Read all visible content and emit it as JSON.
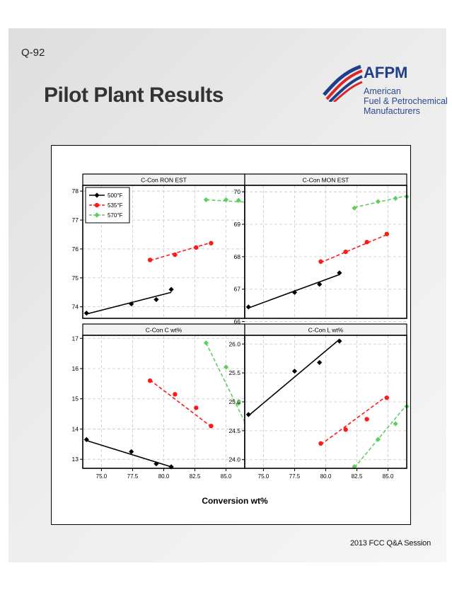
{
  "slide": {
    "number": "Q-92",
    "title": "Pilot Plant Results",
    "footer": "2013 FCC Q&A Session"
  },
  "logo": {
    "name": "AFPM",
    "line1": "American",
    "line2": "Fuel & Petrochemical",
    "line3": "Manufacturers",
    "colors": {
      "blue": "#1f3f8a",
      "red": "#d62828"
    }
  },
  "chart_data": {
    "type": "scatter",
    "xlabel": "Conversion wt%",
    "xlim": [
      73.5,
      86.5
    ],
    "xticks": [
      75.0,
      77.5,
      80.0,
      82.5,
      85.0
    ],
    "xtick_labels": [
      "75.0",
      "77.5",
      "80.0",
      "82.5",
      "85.0"
    ],
    "legend": {
      "placement": "top-left",
      "entries": [
        "500°F",
        "535°F",
        "570°F"
      ]
    },
    "series_styles": [
      {
        "name": "500°F",
        "color": "#000000",
        "marker": "diamond",
        "line": "solid"
      },
      {
        "name": "535°F",
        "color": "#ff1a1a",
        "marker": "circle",
        "line": "dashed"
      },
      {
        "name": "570°F",
        "color": "#5fce5f",
        "marker": "diamond",
        "line": "dashed"
      }
    ],
    "panels": [
      {
        "title": "C-Con RON EST",
        "ylim": [
          73.6,
          78.2
        ],
        "yticks": [
          74,
          75,
          76,
          77,
          78
        ],
        "ytick_labels": [
          "74",
          "75",
          "76",
          "77",
          "78"
        ],
        "series": [
          {
            "name": "500°F",
            "points": [
              [
                73.8,
                73.78
              ],
              [
                77.4,
                74.1
              ],
              [
                79.4,
                74.25
              ],
              [
                80.6,
                74.6
              ]
            ],
            "fit": [
              [
                73.8,
                73.75
              ],
              [
                80.6,
                74.5
              ]
            ]
          },
          {
            "name": "535°F",
            "points": [
              [
                78.9,
                75.62
              ],
              [
                80.9,
                75.8
              ],
              [
                82.6,
                76.05
              ],
              [
                83.8,
                76.2
              ]
            ],
            "fit": [
              [
                78.9,
                75.6
              ],
              [
                83.8,
                76.22
              ]
            ]
          },
          {
            "name": "570°F",
            "points": [
              [
                83.4,
                77.7
              ],
              [
                85.0,
                77.7
              ],
              [
                86.0,
                77.68
              ],
              [
                86.6,
                77.6
              ]
            ],
            "fit": [
              [
                83.4,
                77.7
              ],
              [
                86.6,
                77.62
              ]
            ]
          }
        ]
      },
      {
        "title": "C-Con MON EST",
        "ylim": [
          66.1,
          70.2
        ],
        "yticks": [
          66,
          67,
          68,
          69,
          70
        ],
        "ytick_labels": [
          "66",
          "67",
          "68",
          "69",
          "70"
        ],
        "series": [
          {
            "name": "500°F",
            "points": [
              [
                73.8,
                66.45
              ],
              [
                77.5,
                66.9
              ],
              [
                79.5,
                67.15
              ],
              [
                81.1,
                67.5
              ]
            ],
            "fit": [
              [
                73.8,
                66.42
              ],
              [
                81.1,
                67.45
              ]
            ]
          },
          {
            "name": "535°F",
            "points": [
              [
                79.6,
                67.85
              ],
              [
                81.6,
                68.15
              ],
              [
                83.3,
                68.45
              ],
              [
                84.9,
                68.7
              ]
            ],
            "fit": [
              [
                79.6,
                67.82
              ],
              [
                84.9,
                68.68
              ]
            ]
          },
          {
            "name": "570°F",
            "points": [
              [
                82.3,
                69.5
              ],
              [
                84.2,
                69.7
              ],
              [
                85.6,
                69.8
              ],
              [
                86.5,
                69.85
              ]
            ],
            "fit": [
              [
                82.3,
                69.52
              ],
              [
                86.5,
                69.88
              ]
            ]
          }
        ]
      },
      {
        "title": "C-Con C wt%",
        "ylim": [
          12.7,
          17.1
        ],
        "yticks": [
          13,
          14,
          15,
          16,
          17
        ],
        "ytick_labels": [
          "13",
          "14",
          "15",
          "16",
          "17"
        ],
        "series": [
          {
            "name": "500°F",
            "points": [
              [
                73.8,
                13.65
              ],
              [
                77.4,
                13.25
              ],
              [
                79.4,
                12.85
              ],
              [
                80.6,
                12.75
              ]
            ],
            "fit": [
              [
                73.8,
                13.62
              ],
              [
                80.6,
                12.75
              ]
            ]
          },
          {
            "name": "535°F",
            "points": [
              [
                78.9,
                15.6
              ],
              [
                80.9,
                15.15
              ],
              [
                82.6,
                14.7
              ],
              [
                83.8,
                14.1
              ]
            ],
            "fit": [
              [
                78.9,
                15.62
              ],
              [
                83.8,
                14.08
              ]
            ]
          },
          {
            "name": "570°F",
            "points": [
              [
                83.4,
                16.85
              ],
              [
                85.0,
                16.05
              ],
              [
                86.0,
                14.85
              ],
              [
                86.6,
                14.2
              ]
            ],
            "fit": [
              [
                83.4,
                16.85
              ],
              [
                86.6,
                14.15
              ]
            ]
          }
        ]
      },
      {
        "title": "C-Con L wt%",
        "ylim": [
          23.85,
          26.15
        ],
        "yticks": [
          24.0,
          24.5,
          25.0,
          25.5,
          26.0
        ],
        "ytick_labels": [
          "24.0",
          "24.5",
          "25.0",
          "25.5",
          "26.0"
        ],
        "series": [
          {
            "name": "500°F",
            "points": [
              [
                73.8,
                24.78
              ],
              [
                77.5,
                25.53
              ],
              [
                79.5,
                25.68
              ],
              [
                81.1,
                26.05
              ]
            ],
            "fit": [
              [
                73.8,
                24.76
              ],
              [
                81.1,
                26.08
              ]
            ]
          },
          {
            "name": "535°F",
            "points": [
              [
                79.6,
                24.28
              ],
              [
                81.6,
                24.52
              ],
              [
                83.3,
                24.7
              ],
              [
                84.9,
                25.07
              ]
            ],
            "fit": [
              [
                79.6,
                24.26
              ],
              [
                84.9,
                25.1
              ]
            ]
          },
          {
            "name": "570°F",
            "points": [
              [
                82.3,
                23.88
              ],
              [
                84.2,
                24.35
              ],
              [
                85.6,
                24.62
              ],
              [
                86.5,
                24.92
              ]
            ],
            "fit": [
              [
                82.3,
                23.86
              ],
              [
                86.5,
                24.95
              ]
            ]
          }
        ]
      }
    ]
  }
}
